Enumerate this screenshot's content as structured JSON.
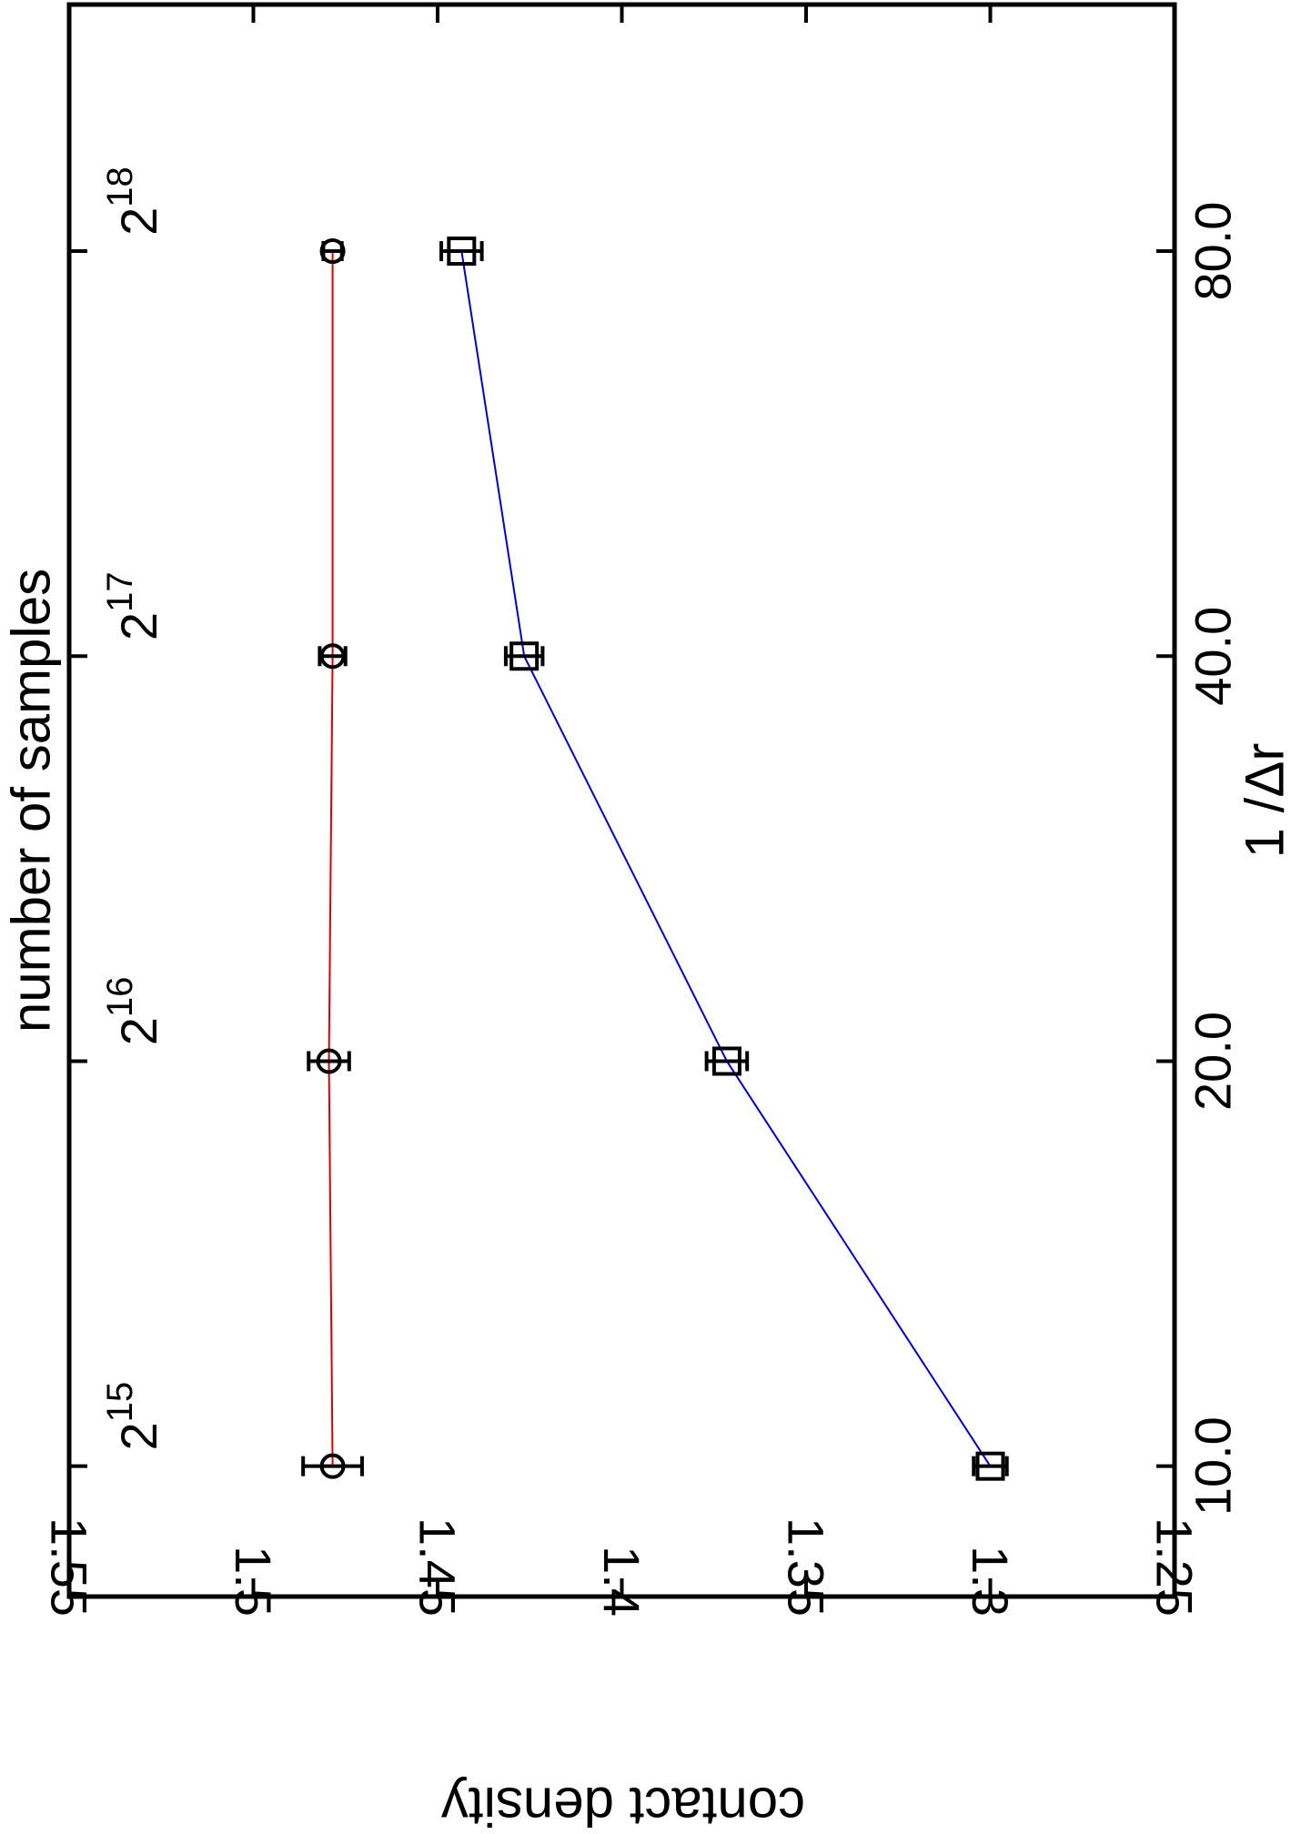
{
  "chart_data": {
    "type": "line",
    "orientation": "rotated-90-clockwise",
    "xlabel": "1 /Δr",
    "ylabel": "contact density",
    "x2label": "number of samples",
    "x": [
      10.0,
      20.0,
      40.0,
      80.0
    ],
    "x_ticks": [
      "10.0",
      "20.0",
      "40.0",
      "80.0"
    ],
    "x_scale": "log",
    "xlim": [
      8.0,
      122.0
    ],
    "ylim": [
      1.25,
      1.55
    ],
    "y_ticks": [
      "1.25",
      "1.3",
      "1.35",
      "1.4",
      "1.45",
      "1.5",
      "1.55"
    ],
    "x2_ticks": [
      {
        "base": "2",
        "exp": "15"
      },
      {
        "base": "2",
        "exp": "16"
      },
      {
        "base": "2",
        "exp": "17"
      },
      {
        "base": "2",
        "exp": "18"
      }
    ],
    "grid": false,
    "legend": "none",
    "series": [
      {
        "marker": "circle",
        "color": "#dd0000",
        "values": [
          1.4785,
          1.4795,
          1.4785,
          1.4785
        ],
        "errors": [
          0.008,
          0.0055,
          0.0035,
          0.0025
        ]
      },
      {
        "marker": "square",
        "color": "#0000cc",
        "values": [
          1.3,
          1.3715,
          1.4265,
          1.4435
        ],
        "errors": [
          0.0045,
          0.0055,
          0.005,
          0.0055
        ]
      }
    ]
  }
}
